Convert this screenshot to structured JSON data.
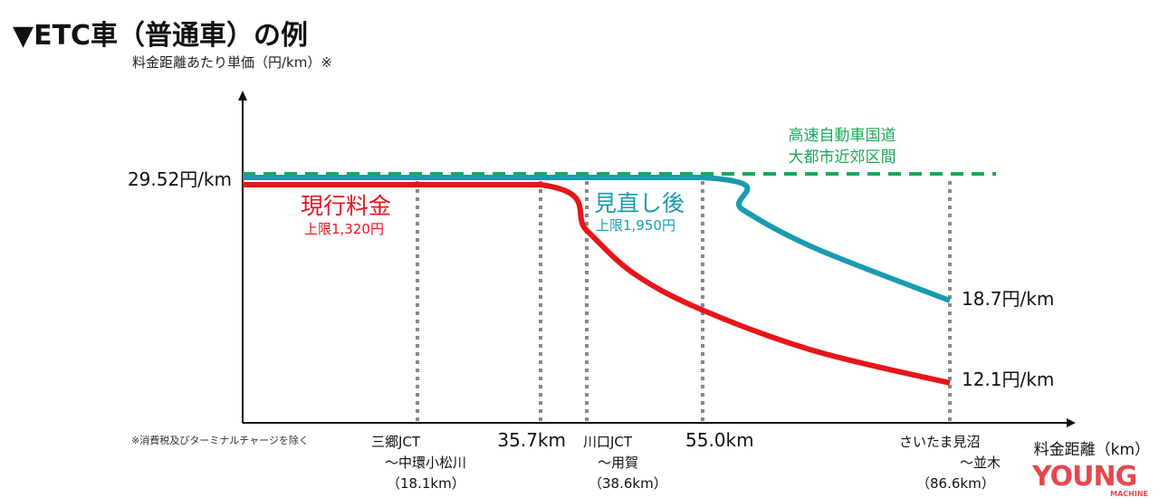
{
  "chart_data": {
    "type": "line",
    "title": "▼ETC車（普通車）の例",
    "ylabel": "料金距離あたり単価（円/km）※",
    "xlabel": "料金距離（km）",
    "footnote": "※消費税及びターミナルチャージを除く",
    "y_tick_label": "29.52円/km",
    "x_ticks": [
      {
        "x": 18.1,
        "label_lines": [
          "三郷JCT",
          "～中環小松川",
          "（18.1km）"
        ]
      },
      {
        "x": 35.7,
        "label_lines": [
          "35.7km"
        ]
      },
      {
        "x": 38.6,
        "label_lines": [
          "川口JCT",
          "～用賀",
          "（38.6km）"
        ]
      },
      {
        "x": 55.0,
        "label_lines": [
          "55.0km"
        ]
      },
      {
        "x": 86.6,
        "label_lines": [
          "さいたま見沼",
          "～並木",
          "（86.6km）"
        ]
      }
    ],
    "series": [
      {
        "name": "現行料金",
        "sub": "上限1,320円",
        "color": "#e8141b",
        "end_label": "12.1円/km",
        "points": [
          [
            0,
            29.52
          ],
          [
            35.7,
            29.52
          ],
          [
            38.6,
            25.5
          ],
          [
            45.3,
            21.7
          ],
          [
            55,
            18.5
          ],
          [
            69.4,
            14.9
          ],
          [
            86.6,
            12.1
          ]
        ]
      },
      {
        "name": "見直し後",
        "sub": "上限1,950円",
        "color": "#1a9bb0",
        "end_label": "18.7円/km",
        "points": [
          [
            0,
            29.52
          ],
          [
            55,
            29.52
          ],
          [
            60.1,
            26.7
          ],
          [
            69.4,
            23.3
          ],
          [
            86.6,
            18.7
          ]
        ]
      },
      {
        "name": "高速自動車国道\n大都市近郊区間",
        "color": "#1aa85a",
        "dashed": true,
        "points": [
          [
            0,
            29.52
          ],
          [
            95,
            29.52
          ]
        ]
      }
    ]
  },
  "logo": {
    "text": "YOUNG",
    "sub": "MACHINE",
    "color": "#e8474f"
  }
}
